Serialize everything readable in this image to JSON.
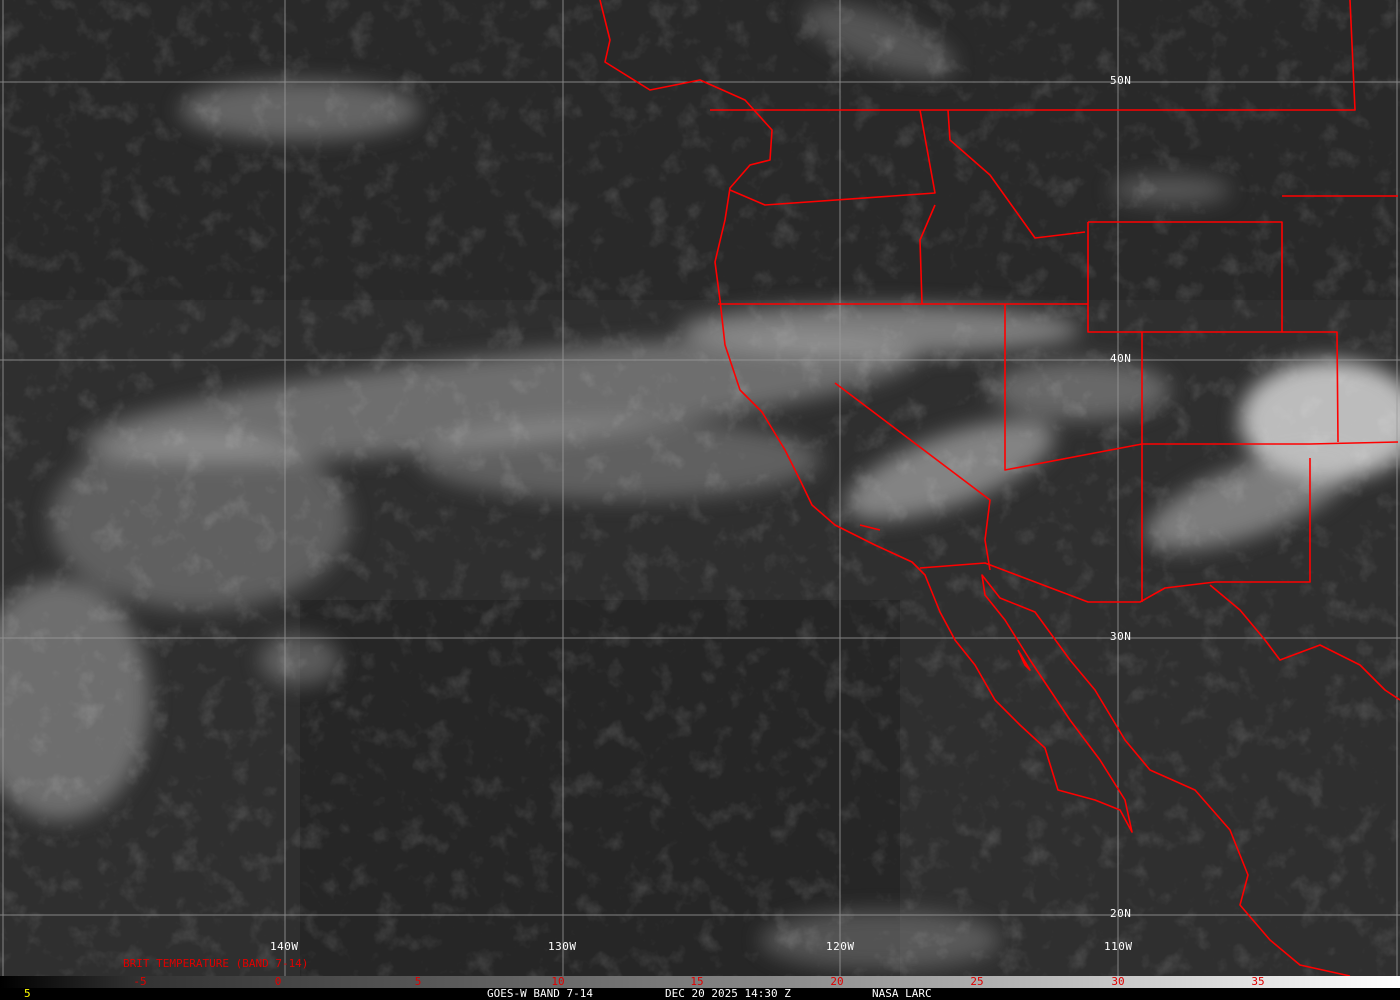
{
  "map": {
    "longitude_labels": [
      "140W",
      "130W",
      "120W",
      "110W"
    ],
    "latitude_labels": [
      "50N",
      "40N",
      "30N",
      "20N"
    ],
    "boundary_color": "#ff0000",
    "grid_color": "#9a9a9a"
  },
  "colorbar": {
    "title": "BRIT TEMPERATURE (BAND 7-14)",
    "ticks": [
      "-5",
      "0",
      "5",
      "10",
      "15",
      "20",
      "25",
      "30",
      "35"
    ],
    "tick_color": "#e00000"
  },
  "footer": {
    "left_value": "5",
    "product": "GOES-W BAND 7-14",
    "datetime": "DEC 20 2025 14:30 Z",
    "source": "NASA LARC"
  }
}
